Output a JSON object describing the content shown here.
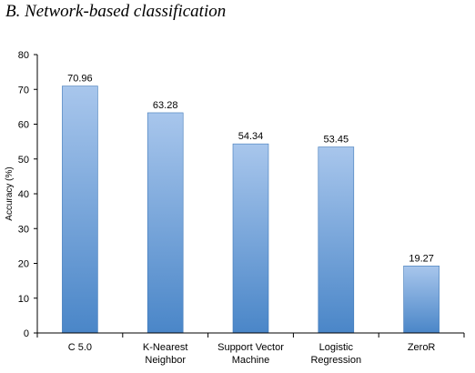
{
  "chart_data": {
    "type": "bar",
    "title": "B.  Network-based classification",
    "xlabel": "",
    "ylabel": "Accuracy (%)",
    "ylim": [
      0,
      80
    ],
    "yticks": [
      "0",
      "10",
      "20",
      "30",
      "40",
      "50",
      "60",
      "70",
      "80"
    ],
    "grid": false,
    "categories": [
      [
        "C 5.0"
      ],
      [
        "K-Nearest",
        "Neighbor"
      ],
      [
        "Support Vector",
        "Machine"
      ],
      [
        "Logistic",
        "Regression"
      ],
      [
        "ZeroR"
      ]
    ],
    "values": [
      70.96,
      63.28,
      54.34,
      53.45,
      19.27
    ],
    "value_labels": [
      "70.96",
      "63.28",
      "54.34",
      "53.45",
      "19.27"
    ],
    "colors": {
      "bar_top": "#a8c6ec",
      "bar_bottom": "#4a86c8",
      "bar_edge": "#3f78b8",
      "axis": "#000000"
    }
  }
}
